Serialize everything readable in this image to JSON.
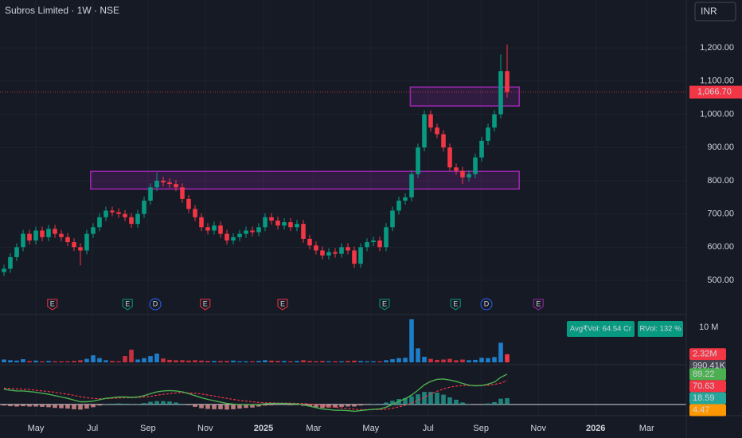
{
  "header": {
    "title": "Subros Limited · 1W · NSE",
    "currency": "INR"
  },
  "chart_data": {
    "type": "candlestick",
    "xlim": [
      -0.625,
      107.125
    ],
    "xticks": [
      {
        "value": 5,
        "label": "May"
      },
      {
        "value": 13.9,
        "label": "Jul"
      },
      {
        "value": 22.6,
        "label": "Sep"
      },
      {
        "value": 31.6,
        "label": "Nov"
      },
      {
        "value": 40.75,
        "label": "2025"
      },
      {
        "value": 48.6,
        "label": "Mar"
      },
      {
        "value": 57.6,
        "label": "May"
      },
      {
        "value": 66.6,
        "label": "Jul"
      },
      {
        "value": 74.9,
        "label": "Sep"
      },
      {
        "value": 83.9,
        "label": "Nov"
      },
      {
        "value": 92.9,
        "label": "2026"
      },
      {
        "value": 100.9,
        "label": "Mar"
      }
    ],
    "ylim": [
      397,
      1344
    ],
    "yticks": [
      {
        "value": 500,
        "label": "500.00"
      },
      {
        "value": 600,
        "label": "600.00"
      },
      {
        "value": 700,
        "label": "700.00"
      },
      {
        "value": 800,
        "label": "800.00"
      },
      {
        "value": 900,
        "label": "900.00"
      },
      {
        "value": 1000,
        "label": "1,000.00"
      },
      {
        "value": 1100,
        "label": "1,100.00"
      },
      {
        "value": 1200,
        "label": "1,200.00"
      }
    ],
    "open": [
      525,
      535,
      570,
      600,
      640,
      620,
      650,
      630,
      655,
      640,
      630,
      615,
      600,
      590,
      640,
      660,
      690,
      710,
      705,
      700,
      690,
      670,
      700,
      740,
      780,
      800,
      795,
      790,
      780,
      745,
      715,
      690,
      660,
      650,
      665,
      640,
      620,
      630,
      640,
      650,
      645,
      660,
      690,
      680,
      665,
      675,
      660,
      670,
      625,
      605,
      590,
      575,
      585,
      580,
      600,
      590,
      550,
      600,
      615,
      620,
      600,
      660,
      710,
      740,
      750,
      820,
      900,
      1000,
      960,
      940,
      900,
      840,
      830,
      810,
      820,
      870,
      920,
      960,
      1000,
      1130
    ],
    "high": [
      547,
      582,
      612,
      652,
      652,
      662,
      662,
      667,
      667,
      652,
      642,
      627,
      612,
      652,
      672,
      702,
      722,
      722,
      717,
      712,
      702,
      712,
      752,
      792,
      825,
      812,
      807,
      802,
      792,
      757,
      727,
      702,
      672,
      677,
      677,
      652,
      642,
      652,
      662,
      662,
      672,
      702,
      702,
      692,
      687,
      687,
      682,
      682,
      637,
      617,
      602,
      597,
      597,
      612,
      612,
      602,
      612,
      627,
      632,
      632,
      672,
      722,
      752,
      762,
      832,
      912,
      1012,
      1012,
      972,
      952,
      912,
      852,
      842,
      832,
      882,
      932,
      972,
      1012,
      1180,
      1210
    ],
    "low": [
      513,
      523,
      558,
      588,
      608,
      608,
      618,
      618,
      628,
      618,
      603,
      588,
      545,
      578,
      628,
      648,
      678,
      693,
      688,
      678,
      658,
      658,
      688,
      728,
      768,
      783,
      778,
      768,
      733,
      703,
      678,
      648,
      638,
      638,
      628,
      608,
      608,
      618,
      628,
      633,
      633,
      648,
      668,
      653,
      653,
      648,
      648,
      613,
      593,
      578,
      563,
      563,
      568,
      568,
      578,
      538,
      538,
      588,
      603,
      588,
      588,
      648,
      698,
      728,
      738,
      808,
      888,
      948,
      928,
      888,
      828,
      818,
      790,
      798,
      808,
      858,
      908,
      948,
      988,
      1050
    ],
    "close": [
      535,
      570,
      600,
      640,
      620,
      650,
      630,
      655,
      640,
      630,
      615,
      600,
      590,
      640,
      660,
      690,
      710,
      705,
      700,
      690,
      670,
      700,
      740,
      780,
      800,
      795,
      790,
      780,
      745,
      715,
      690,
      660,
      650,
      665,
      640,
      620,
      630,
      640,
      650,
      645,
      660,
      690,
      680,
      665,
      675,
      660,
      670,
      625,
      605,
      590,
      575,
      585,
      580,
      600,
      590,
      550,
      600,
      615,
      620,
      600,
      660,
      710,
      740,
      750,
      820,
      900,
      1000,
      960,
      940,
      900,
      840,
      830,
      810,
      820,
      870,
      920,
      960,
      1000,
      1130,
      1066.7
    ],
    "up_color": "#089981",
    "down_color": "#f23645",
    "last_price": {
      "value": 1066.7,
      "label": "1,066.70"
    },
    "zones": [
      {
        "from": 13.6,
        "to": 80.9,
        "low": 775,
        "high": 828
      },
      {
        "from": 63.8,
        "to": 80.9,
        "low": 1025,
        "high": 1082
      }
    ],
    "zone_color": "#9c27b0",
    "events": [
      {
        "label": "E",
        "x": 7.6,
        "color": "#f23645"
      },
      {
        "label": "E",
        "x": 19.4,
        "color": "#089981"
      },
      {
        "label": "D",
        "x": 23.75,
        "color": "#2962ff"
      },
      {
        "label": "E",
        "x": 31.6,
        "color": "#f23645"
      },
      {
        "label": "E",
        "x": 43.75,
        "color": "#f23645"
      },
      {
        "label": "E",
        "x": 59.75,
        "color": "#089981"
      },
      {
        "label": "E",
        "x": 70.9,
        "color": "#089981"
      },
      {
        "label": "D",
        "x": 75.75,
        "color": "#2962ff"
      },
      {
        "label": "E",
        "x": 83.9,
        "color": "#9c27b0"
      }
    ],
    "volume": {
      "values": [
        0.8,
        0.6,
        0.5,
        0.9,
        0.4,
        0.5,
        0.3,
        0.4,
        0.3,
        0.3,
        0.3,
        0.4,
        0.6,
        1.0,
        2.0,
        1.2,
        0.6,
        0.4,
        0.3,
        1.8,
        3.6,
        0.8,
        1.2,
        1.8,
        2.5,
        1.1,
        0.7,
        0.6,
        0.6,
        0.5,
        0.6,
        0.5,
        0.4,
        0.4,
        0.4,
        0.4,
        0.5,
        0.3,
        0.3,
        0.3,
        0.4,
        0.6,
        0.5,
        0.4,
        0.4,
        0.3,
        0.4,
        0.6,
        0.4,
        0.3,
        0.4,
        0.3,
        0.3,
        0.3,
        0.4,
        0.5,
        0.4,
        0.3,
        0.3,
        0.3,
        0.6,
        0.9,
        1.2,
        1.3,
        12.3,
        4.0,
        1.6,
        1.0,
        0.7,
        0.8,
        1.0,
        0.6,
        0.8,
        0.6,
        0.7,
        1.3,
        1.2,
        1.5,
        5.6,
        2.32
      ],
      "ylim": [
        0,
        12.5
      ],
      "yticks": [
        {
          "value": 10,
          "label": "10 M"
        }
      ],
      "up_color": "#2196f3",
      "down_color": "#f23645",
      "last_label": {
        "value": 2.32,
        "label": "2.32M"
      },
      "ma_label": {
        "value": 0.99041,
        "label": "990.41K"
      },
      "avg_label": "Avg₹Vol: 64.54 Cr",
      "rvol_label": "RVol: 132 %"
    },
    "macd": {
      "ylim": [
        -33,
        117
      ],
      "macd": [
        45,
        42,
        40,
        40,
        38,
        36,
        33,
        30,
        26,
        22,
        18,
        13,
        8,
        8,
        10,
        14,
        18,
        20,
        22,
        22,
        21,
        22,
        26,
        32,
        37,
        40,
        41,
        40,
        37,
        32,
        26,
        20,
        15,
        11,
        7,
        3,
        1,
        0,
        0,
        -1,
        0,
        2,
        3,
        3,
        3,
        2,
        2,
        -1,
        -5,
        -9,
        -13,
        -15,
        -17,
        -17,
        -18,
        -20,
        -18,
        -16,
        -14,
        -13,
        -8,
        0,
        9,
        17,
        28,
        42,
        58,
        68,
        74,
        75,
        72,
        68,
        62,
        57,
        55,
        56,
        60,
        66,
        80,
        89.22
      ],
      "signal": [
        48,
        47,
        46,
        45,
        44,
        42,
        40,
        38,
        36,
        33,
        30,
        27,
        23,
        20,
        18,
        17,
        17,
        18,
        19,
        20,
        20,
        21,
        22,
        24,
        27,
        30,
        32,
        34,
        35,
        34,
        33,
        31,
        28,
        25,
        21,
        18,
        15,
        12,
        10,
        8,
        6,
        5,
        5,
        4,
        4,
        4,
        3,
        3,
        1,
        -1,
        -3,
        -6,
        -8,
        -10,
        -12,
        -14,
        -15,
        -15,
        -15,
        -15,
        -14,
        -11,
        -7,
        -2,
        4,
        12,
        21,
        31,
        39,
        46,
        51,
        54,
        56,
        56,
        56,
        56,
        57,
        59,
        63,
        70.63
      ],
      "histogram": [
        -3,
        -5,
        -6,
        -5,
        -6,
        -6,
        -7,
        -8,
        -10,
        -11,
        -12,
        -14,
        -15,
        -12,
        -8,
        -3,
        1,
        2,
        3,
        2,
        1,
        1,
        4,
        8,
        10,
        10,
        9,
        6,
        2,
        -2,
        -7,
        -11,
        -13,
        -14,
        -14,
        -15,
        -14,
        -12,
        -10,
        -9,
        -6,
        -3,
        -2,
        -1,
        -1,
        -2,
        -1,
        -4,
        -6,
        -8,
        -10,
        -9,
        -9,
        -7,
        -6,
        -6,
        -3,
        -1,
        1,
        2,
        6,
        11,
        16,
        19,
        24,
        30,
        37,
        37,
        35,
        29,
        21,
        14,
        6,
        1,
        -1,
        0,
        3,
        7,
        17,
        18.59
      ],
      "extra_value": 4.47,
      "macd_color": "#4caf50",
      "signal_color": "#f23645",
      "positive_color": "#26a69a",
      "negative_color": "#ef9a9a",
      "extra_color": "#ff9800"
    }
  }
}
